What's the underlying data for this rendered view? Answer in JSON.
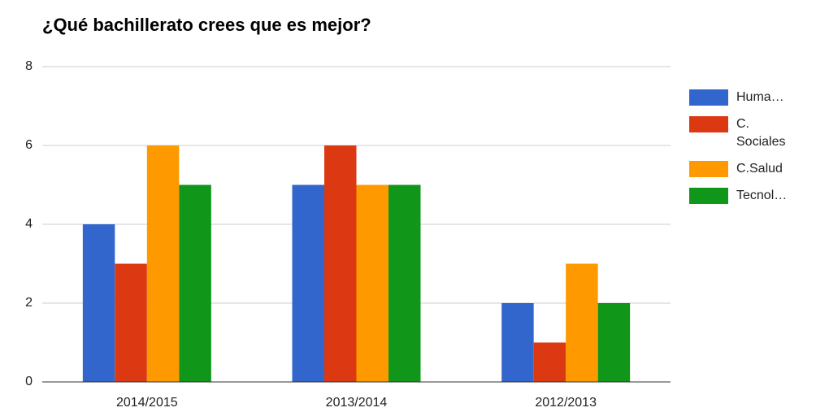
{
  "chart_data": {
    "type": "bar",
    "title": "¿Qué bachillerato crees que es mejor?",
    "categories": [
      "2014/2015",
      "2013/2014",
      "2012/2013"
    ],
    "series": [
      {
        "name": "Huma…",
        "color": "#3366cc",
        "values": [
          4,
          5,
          2
        ]
      },
      {
        "name": "C. Sociales",
        "color": "#dc3912",
        "values": [
          3,
          6,
          1
        ]
      },
      {
        "name": "C.Salud",
        "color": "#ff9900",
        "values": [
          6,
          5,
          3
        ]
      },
      {
        "name": "Tecnol…",
        "color": "#109618",
        "values": [
          5,
          5,
          2
        ]
      }
    ],
    "ylim": [
      0,
      8
    ],
    "yticks": [
      0,
      2,
      4,
      6,
      8
    ],
    "grid": true,
    "legend": "right"
  }
}
